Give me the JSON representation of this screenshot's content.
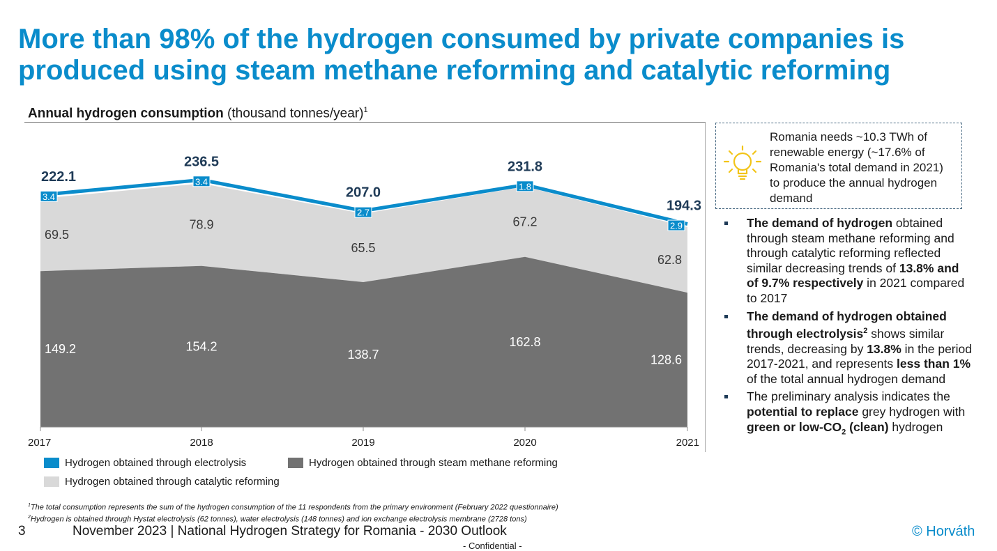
{
  "title": {
    "line1": "More than 98% of the hydrogen consumed by private companies is",
    "line2": "produced using steam methane reforming and catalytic reforming"
  },
  "chart_heading": {
    "bold": "Annual hydrogen consumption",
    "normal": " (thousand tonnes/year)",
    "sup": "1"
  },
  "chart_data": {
    "type": "area",
    "stacked": true,
    "categories": [
      "2017",
      "2018",
      "2019",
      "2020",
      "2021"
    ],
    "series": [
      {
        "name": "Hydrogen obtained through steam methane reforming",
        "values": [
          149.2,
          154.2,
          138.7,
          162.8,
          128.6
        ],
        "color": "#727272"
      },
      {
        "name": "Hydrogen obtained through catalytic reforming",
        "values": [
          69.5,
          78.9,
          65.5,
          67.2,
          62.8
        ],
        "color": "#d9d9d9"
      },
      {
        "name": "Hydrogen obtained through electrolysis",
        "values": [
          3.4,
          3.4,
          2.7,
          1.8,
          2.9
        ],
        "color": "#0a8ccb"
      }
    ],
    "totals": [
      "222.1",
      "236.5",
      "207.0",
      "231.8",
      "194.3"
    ],
    "value_labels": {
      "steam": [
        "149.2",
        "154.2",
        "138.7",
        "162.8",
        "128.6"
      ],
      "catalytic": [
        "69.5",
        "78.9",
        "65.5",
        "67.2",
        "62.8"
      ],
      "electrolysis": [
        "3.4",
        "3.4",
        "2.7",
        "1.8",
        "2.9"
      ]
    },
    "ylim": [
      0,
      250
    ],
    "grid": false,
    "legend_position": "bottom"
  },
  "legend": {
    "electrolysis": "Hydrogen obtained through electrolysis",
    "steam": "Hydrogen obtained through steam methane reforming",
    "catalytic": "Hydrogen obtained through catalytic reforming"
  },
  "colors": {
    "accent": "#0a8ccb",
    "steam": "#727272",
    "catalytic": "#d9d9d9",
    "bulb": "#f2c417"
  },
  "callout": {
    "icon": "lightbulb-icon",
    "text": "Romania needs ~10.3 TWh of renewable energy (~17.6% of Romania's total demand in 2021) to produce the annual hydrogen demand"
  },
  "bullets": {
    "b1": {
      "p1": "The demand of hydrogen",
      "p2": " obtained through steam methane reforming and through catalytic reforming reflected similar decreasing trends of ",
      "p3": "13.8% and of 9.7% respectively",
      "p4": " in 2021 compared to 2017"
    },
    "b2": {
      "p1": "The demand of hydrogen obtained through electrolysis",
      "sup": "2",
      "p2": " shows similar trends, decreasing by ",
      "p3": "13.8%",
      "p4": " in the period 2017-2021, and represents ",
      "p5": "less than 1%",
      "p6": " of the total annual hydrogen demand"
    },
    "b3": {
      "p1": "The preliminary analysis indicates the ",
      "p2": "potential to replace",
      "p3": " grey hydrogen with ",
      "p4": "green or low-CO",
      "sub": "2",
      "p5": " (clean)",
      "p6": " hydrogen"
    }
  },
  "footnotes": {
    "f1_sup": "1",
    "f1": "The total consumption represents the sum of the hydrogen consumption of the 11 respondents from the primary environment (February 2022 questionnaire)",
    "f2_sup": "2",
    "f2": "Hydrogen is obtained through Hystat electrolysis (62 tonnes), water electrolysis (148 tonnes) and ion exchange electrolysis membrane (2728 tons)"
  },
  "footer": {
    "page": "3",
    "text": "November 2023 | National Hydrogen Strategy for Romania - 2030 Outlook",
    "brand": "© Horváth",
    "confidential": "- Confidential -"
  }
}
